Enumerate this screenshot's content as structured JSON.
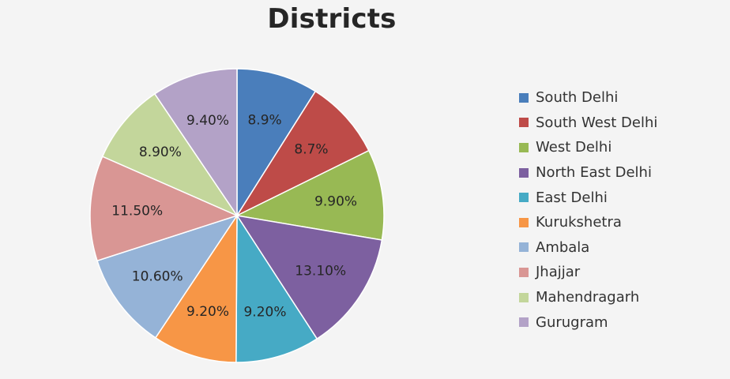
{
  "chart_data": {
    "type": "pie",
    "title": "Districts",
    "legend_position": "right",
    "categories": [
      "South Delhi",
      "South West Delhi",
      "West Delhi",
      "North East Delhi",
      "East Delhi",
      "Kurukshetra",
      "Ambala",
      "Jhajjar",
      "Mahendragarh",
      "Gurugram"
    ],
    "values": [
      8.9,
      8.7,
      9.9,
      13.1,
      9.2,
      9.2,
      10.6,
      11.5,
      8.9,
      9.4
    ],
    "labels": [
      "8.9%",
      "8.7%",
      "9.90%",
      "13.10%",
      "9.20%",
      "9.20%",
      "10.60%",
      "11.50%",
      "8.90%",
      "9.40%"
    ],
    "colors": [
      "#4a7ebb",
      "#be4b48",
      "#98b954",
      "#7d60a0",
      "#46aac5",
      "#f79646",
      "#95b3d7",
      "#d99694",
      "#c3d69b",
      "#b3a2c7"
    ]
  }
}
